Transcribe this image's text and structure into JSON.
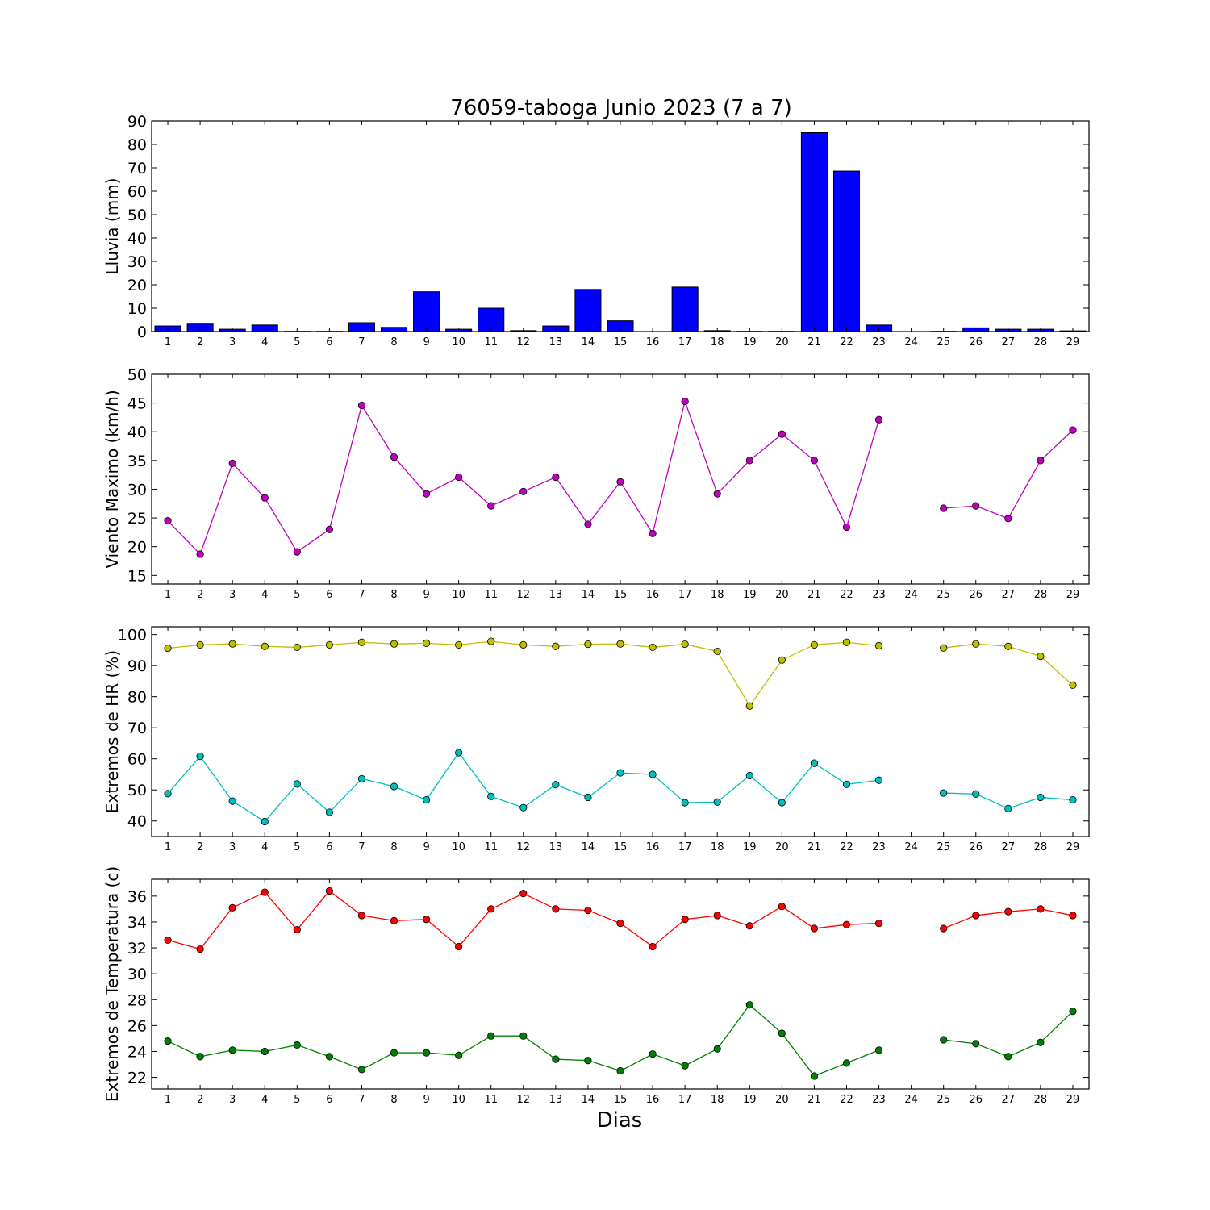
{
  "title": "76059-taboga Junio 2023  (7 a 7)",
  "xlabel": "Dias",
  "chart_data": [
    {
      "type": "bar",
      "ylabel": "Lluvia (mm)",
      "ylim": [
        0,
        90
      ],
      "yticks": [
        0,
        10,
        20,
        30,
        40,
        50,
        60,
        70,
        80,
        90
      ],
      "x": [
        1,
        2,
        3,
        4,
        5,
        6,
        7,
        8,
        9,
        10,
        11,
        12,
        13,
        14,
        15,
        16,
        17,
        18,
        19,
        20,
        21,
        22,
        23,
        24,
        25,
        26,
        27,
        28,
        29
      ],
      "xlim": [
        0.5,
        29.5
      ],
      "series": [
        {
          "color": "#0000ff",
          "values": [
            2.4,
            3.2,
            1.0,
            2.8,
            0.1,
            0.1,
            3.8,
            1.8,
            17.0,
            1.0,
            10.0,
            0.4,
            2.4,
            18.0,
            4.6,
            0.0,
            19.0,
            0.4,
            0.1,
            0.1,
            85.0,
            68.6,
            2.8,
            0.0,
            0.1,
            1.6,
            1.0,
            1.0,
            0.3
          ]
        }
      ]
    },
    {
      "type": "line",
      "ylabel": "Viento Maximo (km/h)",
      "ylim": [
        13.5,
        50
      ],
      "yticks": [
        15,
        20,
        25,
        30,
        35,
        40,
        45,
        50
      ],
      "x": [
        1,
        2,
        3,
        4,
        5,
        6,
        7,
        8,
        9,
        10,
        11,
        12,
        13,
        14,
        15,
        16,
        17,
        18,
        19,
        20,
        21,
        22,
        23,
        24,
        25,
        26,
        27,
        28,
        29
      ],
      "xlim": [
        0.5,
        29.5
      ],
      "series": [
        {
          "color": "#bf00bf",
          "values": [
            24.5,
            18.7,
            34.5,
            28.5,
            19.1,
            23.0,
            44.6,
            35.6,
            29.2,
            32.1,
            27.1,
            29.6,
            32.1,
            23.9,
            31.3,
            22.3,
            45.3,
            29.2,
            35.0,
            39.6,
            35.0,
            23.4,
            42.1,
            null,
            26.7,
            27.1,
            24.9,
            35.0,
            40.3
          ]
        }
      ]
    },
    {
      "type": "line",
      "ylabel": "Extremos de HR (%)",
      "ylim": [
        35,
        102.5
      ],
      "yticks": [
        40,
        50,
        60,
        70,
        80,
        90,
        100
      ],
      "x": [
        1,
        2,
        3,
        4,
        5,
        6,
        7,
        8,
        9,
        10,
        11,
        12,
        13,
        14,
        15,
        16,
        17,
        18,
        19,
        20,
        21,
        22,
        23,
        24,
        25,
        26,
        27,
        28,
        29
      ],
      "xlim": [
        0.5,
        29.5
      ],
      "series": [
        {
          "color": "#bfbf00",
          "values": [
            95.6,
            96.7,
            97.0,
            96.2,
            95.9,
            96.7,
            97.5,
            97.0,
            97.2,
            96.7,
            97.8,
            96.7,
            96.2,
            96.9,
            97.0,
            95.9,
            96.9,
            94.6,
            77.0,
            91.8,
            96.7,
            97.5,
            96.4,
            null,
            95.7,
            97.0,
            96.2,
            93.0,
            83.7
          ]
        },
        {
          "color": "#00bfbf",
          "values": [
            48.8,
            60.8,
            46.4,
            39.8,
            51.9,
            42.8,
            53.6,
            51.1,
            46.8,
            62.0,
            47.9,
            44.3,
            51.7,
            47.6,
            55.5,
            55.0,
            45.9,
            46.1,
            54.6,
            45.9,
            58.6,
            51.8,
            53.1,
            null,
            49.0,
            48.7,
            44.0,
            47.6,
            46.8
          ]
        }
      ]
    },
    {
      "type": "line",
      "ylabel": "Extremos de Temperatura (c)",
      "ylim": [
        21.1,
        37.3
      ],
      "yticks": [
        22,
        24,
        26,
        28,
        30,
        32,
        34,
        36
      ],
      "x": [
        1,
        2,
        3,
        4,
        5,
        6,
        7,
        8,
        9,
        10,
        11,
        12,
        13,
        14,
        15,
        16,
        17,
        18,
        19,
        20,
        21,
        22,
        23,
        24,
        25,
        26,
        27,
        28,
        29
      ],
      "xlim": [
        0.5,
        29.5
      ],
      "series": [
        {
          "color": "#ff0000",
          "values": [
            32.6,
            31.9,
            35.1,
            36.3,
            33.4,
            36.4,
            34.5,
            34.1,
            34.2,
            32.1,
            35.0,
            36.2,
            35.0,
            34.9,
            33.9,
            32.1,
            34.2,
            34.5,
            33.7,
            35.2,
            33.5,
            33.8,
            33.9,
            null,
            33.5,
            34.5,
            34.8,
            35.0,
            34.5
          ]
        },
        {
          "color": "#008000",
          "values": [
            24.8,
            23.6,
            24.1,
            24.0,
            24.5,
            23.6,
            22.6,
            23.9,
            23.9,
            23.7,
            25.2,
            25.2,
            23.4,
            23.3,
            22.5,
            23.8,
            22.9,
            24.2,
            27.6,
            25.4,
            22.1,
            23.1,
            24.1,
            null,
            24.9,
            24.6,
            23.6,
            24.7,
            27.1
          ]
        }
      ]
    }
  ]
}
